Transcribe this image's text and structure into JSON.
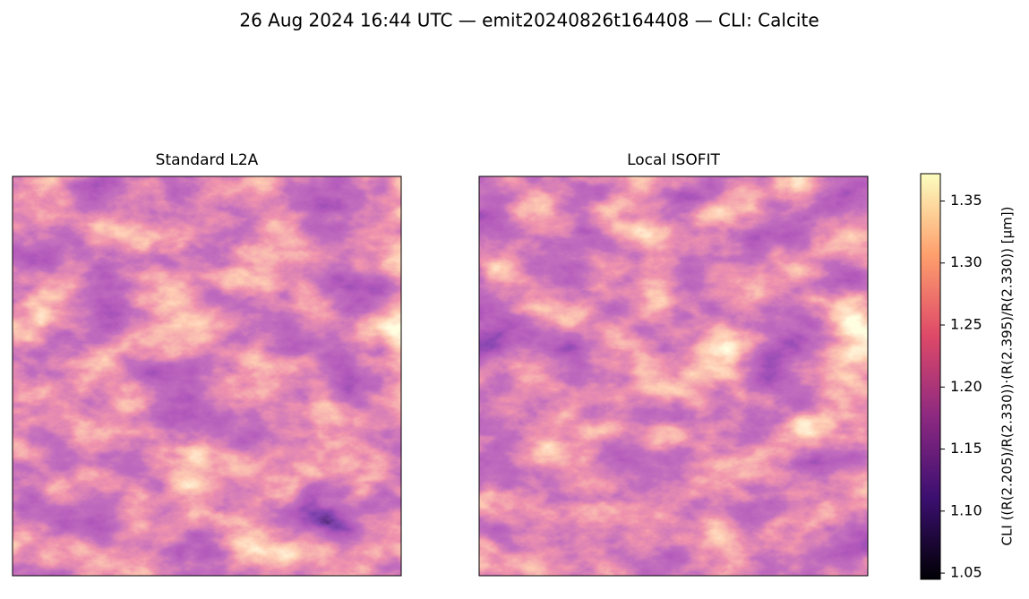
{
  "chart_data": {
    "type": "image",
    "title": "26 Aug 2024 16:44 UTC — emit20240826t164408 — CLI: Calcite",
    "panels": [
      {
        "title": "Standard L2A"
      },
      {
        "title": "Local ISOFIT"
      }
    ],
    "colorbar": {
      "label": "CLI  ((R(2.205)/R(2.330))·(R(2.395)/R(2.330))  [µm])",
      "lim": [
        1.045,
        1.372
      ],
      "ticks": [
        1.05,
        {
          "value": 1.1,
          "label": "1.10"
        },
        1.15,
        {
          "value": 1.2,
          "label": "1.20"
        },
        1.25,
        {
          "value": 1.3,
          "label": "1.30"
        },
        1.35
      ]
    }
  }
}
